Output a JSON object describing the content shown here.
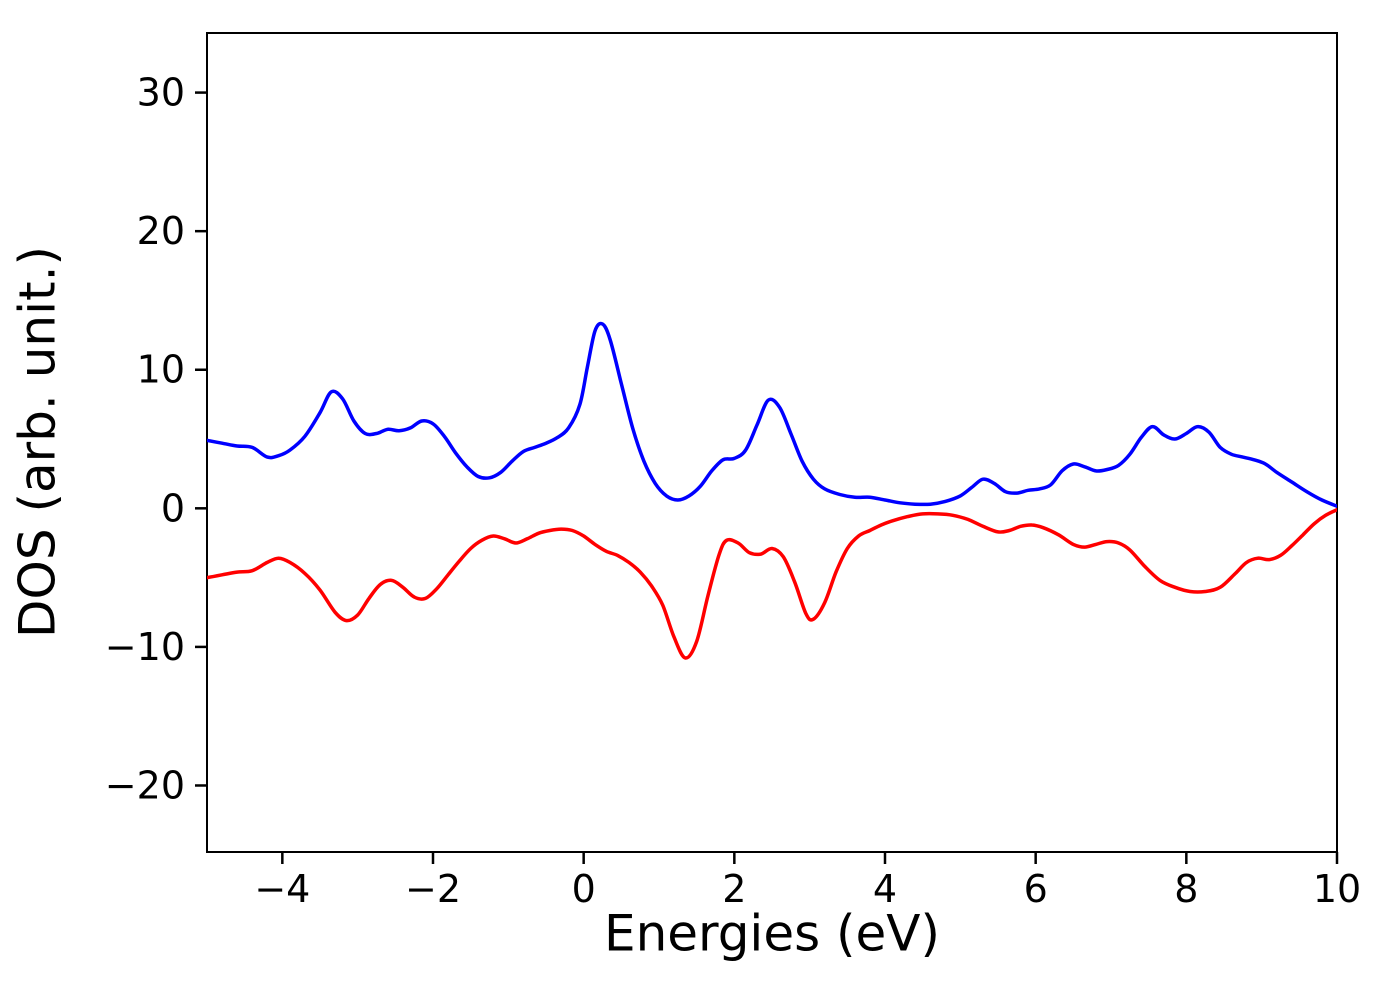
{
  "figure": {
    "background": "#ffffff",
    "plot_background": "#ffffff",
    "spine_color": "#000000",
    "tick_color": "#000000"
  },
  "chart_data": {
    "type": "line",
    "title": "",
    "xlabel": "Energies (eV)",
    "ylabel": "DOS (arb. unit.)",
    "xlim": [
      -5,
      10
    ],
    "ylim": [
      -24.8,
      34.3
    ],
    "xticks": [
      -4,
      -2,
      0,
      2,
      4,
      6,
      8,
      10
    ],
    "xtick_labels": [
      "−4",
      "−2",
      "0",
      "2",
      "4",
      "6",
      "8",
      "10"
    ],
    "yticks": [
      -20,
      -10,
      0,
      10,
      20,
      30
    ],
    "ytick_labels": [
      "−20",
      "−10",
      "0",
      "10",
      "20",
      "30"
    ],
    "grid": false,
    "legend": null,
    "series": [
      {
        "name": "spin-up-dos",
        "color": "#0000ff",
        "line_width": 3.5,
        "points": [
          [
            -5.0,
            4.9
          ],
          [
            -4.8,
            4.7
          ],
          [
            -4.6,
            4.5
          ],
          [
            -4.4,
            4.4
          ],
          [
            -4.2,
            3.7
          ],
          [
            -4.05,
            3.8
          ],
          [
            -3.9,
            4.2
          ],
          [
            -3.7,
            5.2
          ],
          [
            -3.5,
            6.9
          ],
          [
            -3.35,
            8.4
          ],
          [
            -3.2,
            7.9
          ],
          [
            -3.05,
            6.3
          ],
          [
            -2.9,
            5.4
          ],
          [
            -2.75,
            5.4
          ],
          [
            -2.6,
            5.7
          ],
          [
            -2.45,
            5.6
          ],
          [
            -2.3,
            5.8
          ],
          [
            -2.15,
            6.3
          ],
          [
            -2.0,
            6.1
          ],
          [
            -1.85,
            5.2
          ],
          [
            -1.7,
            4.0
          ],
          [
            -1.55,
            3.0
          ],
          [
            -1.4,
            2.3
          ],
          [
            -1.25,
            2.2
          ],
          [
            -1.1,
            2.6
          ],
          [
            -0.95,
            3.4
          ],
          [
            -0.8,
            4.1
          ],
          [
            -0.65,
            4.4
          ],
          [
            -0.5,
            4.7
          ],
          [
            -0.35,
            5.1
          ],
          [
            -0.2,
            5.8
          ],
          [
            -0.05,
            7.5
          ],
          [
            0.05,
            10.2
          ],
          [
            0.15,
            12.8
          ],
          [
            0.25,
            13.3
          ],
          [
            0.35,
            12.2
          ],
          [
            0.5,
            9.0
          ],
          [
            0.65,
            5.8
          ],
          [
            0.8,
            3.4
          ],
          [
            0.95,
            1.8
          ],
          [
            1.1,
            0.9
          ],
          [
            1.25,
            0.6
          ],
          [
            1.4,
            0.9
          ],
          [
            1.55,
            1.6
          ],
          [
            1.7,
            2.7
          ],
          [
            1.85,
            3.5
          ],
          [
            2.0,
            3.6
          ],
          [
            2.15,
            4.2
          ],
          [
            2.3,
            6.0
          ],
          [
            2.45,
            7.8
          ],
          [
            2.6,
            7.3
          ],
          [
            2.75,
            5.4
          ],
          [
            2.9,
            3.4
          ],
          [
            3.05,
            2.1
          ],
          [
            3.2,
            1.4
          ],
          [
            3.4,
            1.0
          ],
          [
            3.6,
            0.8
          ],
          [
            3.8,
            0.8
          ],
          [
            4.0,
            0.6
          ],
          [
            4.2,
            0.4
          ],
          [
            4.4,
            0.3
          ],
          [
            4.6,
            0.3
          ],
          [
            4.8,
            0.5
          ],
          [
            5.0,
            0.9
          ],
          [
            5.15,
            1.5
          ],
          [
            5.3,
            2.1
          ],
          [
            5.45,
            1.8
          ],
          [
            5.6,
            1.2
          ],
          [
            5.75,
            1.1
          ],
          [
            5.9,
            1.3
          ],
          [
            6.05,
            1.4
          ],
          [
            6.2,
            1.7
          ],
          [
            6.35,
            2.7
          ],
          [
            6.5,
            3.2
          ],
          [
            6.65,
            3.0
          ],
          [
            6.8,
            2.7
          ],
          [
            6.95,
            2.8
          ],
          [
            7.1,
            3.1
          ],
          [
            7.25,
            3.9
          ],
          [
            7.4,
            5.1
          ],
          [
            7.55,
            5.9
          ],
          [
            7.7,
            5.3
          ],
          [
            7.85,
            5.0
          ],
          [
            8.0,
            5.4
          ],
          [
            8.15,
            5.9
          ],
          [
            8.3,
            5.5
          ],
          [
            8.45,
            4.4
          ],
          [
            8.6,
            3.9
          ],
          [
            8.75,
            3.7
          ],
          [
            8.9,
            3.5
          ],
          [
            9.05,
            3.2
          ],
          [
            9.2,
            2.6
          ],
          [
            9.4,
            1.9
          ],
          [
            9.6,
            1.2
          ],
          [
            9.8,
            0.6
          ],
          [
            10.0,
            0.15
          ]
        ]
      },
      {
        "name": "spin-down-dos",
        "color": "#ff0000",
        "line_width": 3.5,
        "points": [
          [
            -5.0,
            -5.0
          ],
          [
            -4.8,
            -4.8
          ],
          [
            -4.6,
            -4.6
          ],
          [
            -4.4,
            -4.5
          ],
          [
            -4.2,
            -3.9
          ],
          [
            -4.05,
            -3.6
          ],
          [
            -3.9,
            -3.9
          ],
          [
            -3.7,
            -4.7
          ],
          [
            -3.5,
            -5.9
          ],
          [
            -3.3,
            -7.5
          ],
          [
            -3.15,
            -8.1
          ],
          [
            -3.0,
            -7.7
          ],
          [
            -2.85,
            -6.5
          ],
          [
            -2.7,
            -5.5
          ],
          [
            -2.55,
            -5.2
          ],
          [
            -2.4,
            -5.7
          ],
          [
            -2.25,
            -6.4
          ],
          [
            -2.1,
            -6.5
          ],
          [
            -1.95,
            -5.8
          ],
          [
            -1.8,
            -4.8
          ],
          [
            -1.65,
            -3.8
          ],
          [
            -1.5,
            -2.9
          ],
          [
            -1.35,
            -2.3
          ],
          [
            -1.2,
            -2.0
          ],
          [
            -1.05,
            -2.2
          ],
          [
            -0.9,
            -2.5
          ],
          [
            -0.75,
            -2.2
          ],
          [
            -0.6,
            -1.8
          ],
          [
            -0.45,
            -1.6
          ],
          [
            -0.3,
            -1.5
          ],
          [
            -0.15,
            -1.6
          ],
          [
            0.0,
            -2.0
          ],
          [
            0.15,
            -2.6
          ],
          [
            0.3,
            -3.1
          ],
          [
            0.45,
            -3.4
          ],
          [
            0.6,
            -3.9
          ],
          [
            0.75,
            -4.6
          ],
          [
            0.9,
            -5.6
          ],
          [
            1.05,
            -7.0
          ],
          [
            1.2,
            -9.3
          ],
          [
            1.35,
            -10.8
          ],
          [
            1.5,
            -9.6
          ],
          [
            1.65,
            -6.3
          ],
          [
            1.8,
            -3.3
          ],
          [
            1.9,
            -2.3
          ],
          [
            2.05,
            -2.5
          ],
          [
            2.2,
            -3.2
          ],
          [
            2.35,
            -3.3
          ],
          [
            2.5,
            -2.9
          ],
          [
            2.65,
            -3.5
          ],
          [
            2.8,
            -5.3
          ],
          [
            2.95,
            -7.6
          ],
          [
            3.05,
            -8.0
          ],
          [
            3.2,
            -6.8
          ],
          [
            3.35,
            -4.6
          ],
          [
            3.5,
            -2.9
          ],
          [
            3.65,
            -2.0
          ],
          [
            3.8,
            -1.6
          ],
          [
            3.95,
            -1.2
          ],
          [
            4.1,
            -0.9
          ],
          [
            4.3,
            -0.6
          ],
          [
            4.5,
            -0.4
          ],
          [
            4.7,
            -0.4
          ],
          [
            4.9,
            -0.5
          ],
          [
            5.1,
            -0.8
          ],
          [
            5.3,
            -1.3
          ],
          [
            5.5,
            -1.7
          ],
          [
            5.65,
            -1.6
          ],
          [
            5.8,
            -1.3
          ],
          [
            5.95,
            -1.2
          ],
          [
            6.1,
            -1.4
          ],
          [
            6.3,
            -1.9
          ],
          [
            6.5,
            -2.6
          ],
          [
            6.65,
            -2.8
          ],
          [
            6.8,
            -2.6
          ],
          [
            6.95,
            -2.4
          ],
          [
            7.1,
            -2.5
          ],
          [
            7.25,
            -3.0
          ],
          [
            7.45,
            -4.2
          ],
          [
            7.65,
            -5.2
          ],
          [
            7.85,
            -5.7
          ],
          [
            8.05,
            -6.0
          ],
          [
            8.25,
            -6.0
          ],
          [
            8.45,
            -5.7
          ],
          [
            8.65,
            -4.7
          ],
          [
            8.8,
            -3.9
          ],
          [
            8.95,
            -3.6
          ],
          [
            9.1,
            -3.7
          ],
          [
            9.25,
            -3.4
          ],
          [
            9.4,
            -2.7
          ],
          [
            9.55,
            -1.9
          ],
          [
            9.7,
            -1.1
          ],
          [
            9.85,
            -0.5
          ],
          [
            10.0,
            -0.1
          ]
        ]
      }
    ]
  }
}
